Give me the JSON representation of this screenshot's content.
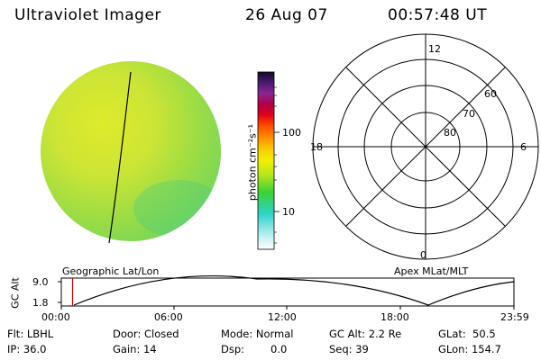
{
  "header": {
    "title": "Ultraviolet Imager",
    "date": "26 Aug 07",
    "time": "00:57:48 UT"
  },
  "colorbar": {
    "unit_label": "photon cm⁻²s⁻¹",
    "ticks": [
      "100",
      "10"
    ]
  },
  "polar": {
    "mlt_labels": [
      "12",
      "18",
      "6",
      "0"
    ],
    "lat_labels": [
      "60",
      "70",
      "80"
    ]
  },
  "panels": {
    "left_caption": "Geographic Lat/Lon",
    "right_caption": "Apex MLat/MLT"
  },
  "altitude_plot": {
    "ylabel": "GC Alt",
    "yticks": [
      "9.0",
      "1.8"
    ],
    "xticks": [
      "00:00",
      "06:00",
      "12:00",
      "18:00",
      "23:59"
    ]
  },
  "info": {
    "filter": "Flt: LBHL",
    "ip": "IP: 36.0",
    "door": "Door: Closed",
    "gain": "Gain: 14",
    "mode": "Mode: Normal",
    "dsp_label": "Dsp:",
    "dsp_value": "0.0",
    "gc_alt": "GC Alt: 2.2 Re",
    "seq": "Seq: 39",
    "glat": "GLat:  50.5",
    "glon": "GLon: 154.7"
  }
}
